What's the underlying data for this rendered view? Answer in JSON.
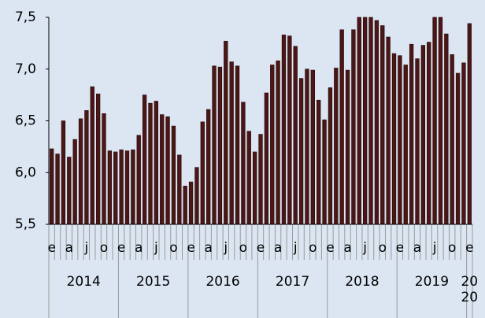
{
  "chart_data": {
    "type": "bar",
    "categories": [
      "e",
      null,
      null,
      "a",
      null,
      null,
      "j",
      null,
      null,
      "o",
      null,
      null,
      "e",
      null,
      null,
      "a",
      null,
      null,
      "j",
      null,
      null,
      "o",
      null,
      null,
      "e",
      null,
      null,
      "a",
      null,
      null,
      "j",
      null,
      null,
      "o",
      null,
      null,
      "e",
      null,
      null,
      "a",
      null,
      null,
      "j",
      null,
      null,
      "o",
      null,
      null,
      "e",
      null,
      null,
      "a",
      null,
      null,
      "j",
      null,
      null,
      "o",
      null,
      null,
      "e",
      null,
      null,
      "a",
      null,
      null,
      "j",
      null,
      null,
      "o",
      null,
      null,
      "e"
    ],
    "years": [
      "2014",
      "2015",
      "2016",
      "2017",
      "2018",
      "2019",
      "2020"
    ],
    "values": [
      6.23,
      6.18,
      6.5,
      6.15,
      6.32,
      6.52,
      6.6,
      6.83,
      6.76,
      6.57,
      6.21,
      6.2,
      6.22,
      6.21,
      6.22,
      6.36,
      6.75,
      6.67,
      6.69,
      6.56,
      6.54,
      6.45,
      6.17,
      5.87,
      5.91,
      6.05,
      6.49,
      6.61,
      7.03,
      7.02,
      7.27,
      7.07,
      7.03,
      6.68,
      6.4,
      6.2,
      6.37,
      6.77,
      7.04,
      7.08,
      7.33,
      7.32,
      7.22,
      6.91,
      7.0,
      6.99,
      6.7,
      6.51,
      6.82,
      7.01,
      7.38,
      6.99,
      7.38,
      7.5,
      7.5,
      7.5,
      7.47,
      7.42,
      7.31,
      7.15,
      7.13,
      7.04,
      7.24,
      7.1,
      7.23,
      7.26,
      7.5,
      7.5,
      7.34,
      7.14,
      6.96,
      7.06,
      7.44
    ],
    "color": "#4a1616",
    "ylim": [
      5.5,
      7.5
    ],
    "yticks": [
      {
        "value": 5.5,
        "label": "5,5"
      },
      {
        "value": 6.0,
        "label": "6,0"
      },
      {
        "value": 6.5,
        "label": "6,5"
      },
      {
        "value": 7.0,
        "label": "7,0"
      },
      {
        "value": 7.5,
        "label": "7,5"
      }
    ]
  }
}
